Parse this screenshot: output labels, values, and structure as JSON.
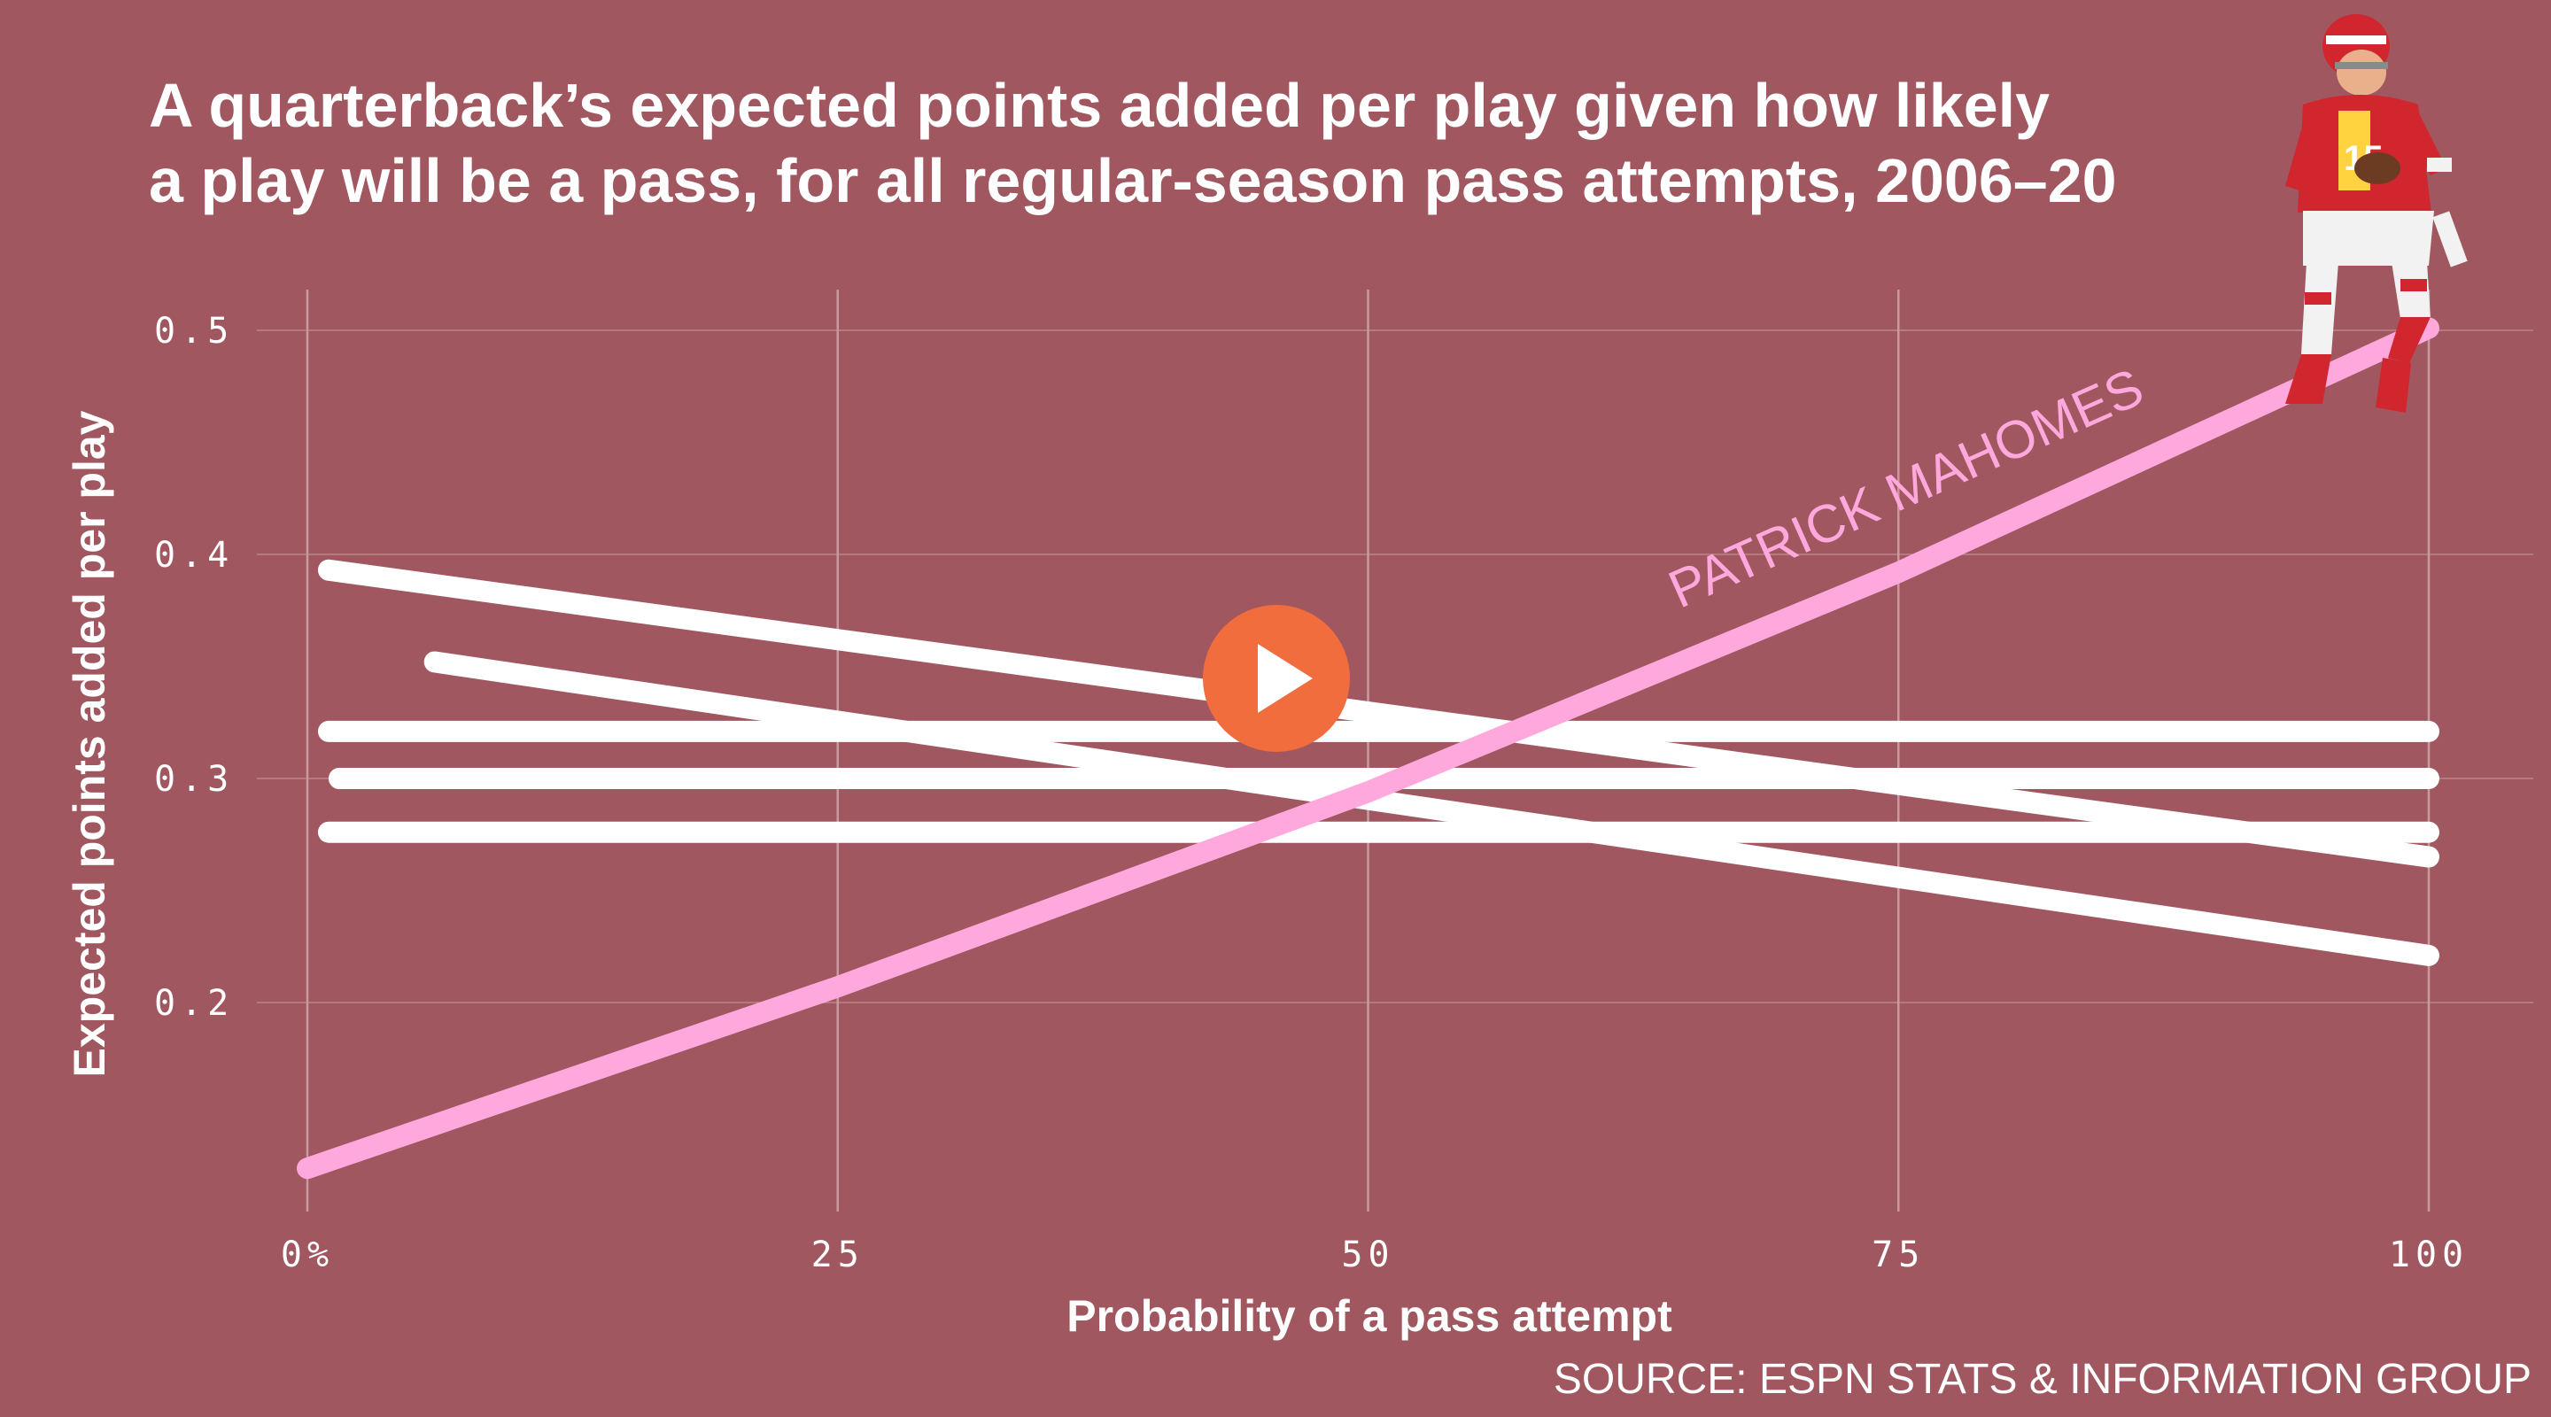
{
  "colors": {
    "background": "#a0575f",
    "grid": "#c99aa0",
    "other_qbs": "#ffffff",
    "highlight": "#ffa8dd",
    "play_button": "#f26d3d"
  },
  "player_image": "quarterback-photo",
  "video": {
    "play_icon": "play-icon"
  },
  "chart_data": {
    "type": "line",
    "title": [
      "A quarterback’s expected points added per play given how likely",
      "a play will be a pass, for all regular-season pass attempts, 2006–20"
    ],
    "xlabel": "Probability of a pass attempt",
    "ylabel": "Expected points added per play",
    "xlim": [
      0,
      100
    ],
    "ylim": [
      0.12,
      0.52
    ],
    "x_ticks": [
      {
        "value": 0,
        "label": "0%"
      },
      {
        "value": 25,
        "label": "25"
      },
      {
        "value": 50,
        "label": "50"
      },
      {
        "value": 75,
        "label": "75"
      },
      {
        "value": 100,
        "label": "100"
      }
    ],
    "y_ticks": [
      {
        "value": 0.2,
        "label": "0.2"
      },
      {
        "value": 0.3,
        "label": "0.3"
      },
      {
        "value": 0.4,
        "label": "0.4"
      },
      {
        "value": 0.5,
        "label": "0.5"
      }
    ],
    "grid": true,
    "highlight_label": "PATRICK MAHOMES",
    "source": "SOURCE: ESPN STATS & INFORMATION GROUP",
    "series": [
      {
        "x": [
          1,
          100
        ],
        "y": [
          0.393,
          0.265
        ],
        "highlight": false
      },
      {
        "x": [
          6,
          100
        ],
        "y": [
          0.352,
          0.221
        ],
        "highlight": false
      },
      {
        "x": [
          1,
          100
        ],
        "y": [
          0.321,
          0.321
        ],
        "highlight": false
      },
      {
        "x": [
          1.5,
          100
        ],
        "y": [
          0.3,
          0.3
        ],
        "highlight": false
      },
      {
        "x": [
          1,
          100
        ],
        "y": [
          0.276,
          0.276
        ],
        "highlight": false
      },
      {
        "name": "PATRICK MAHOMES",
        "x": [
          0,
          25,
          50,
          75,
          100
        ],
        "y": [
          0.126,
          0.207,
          0.294,
          0.392,
          0.501
        ],
        "highlight": true
      }
    ]
  }
}
